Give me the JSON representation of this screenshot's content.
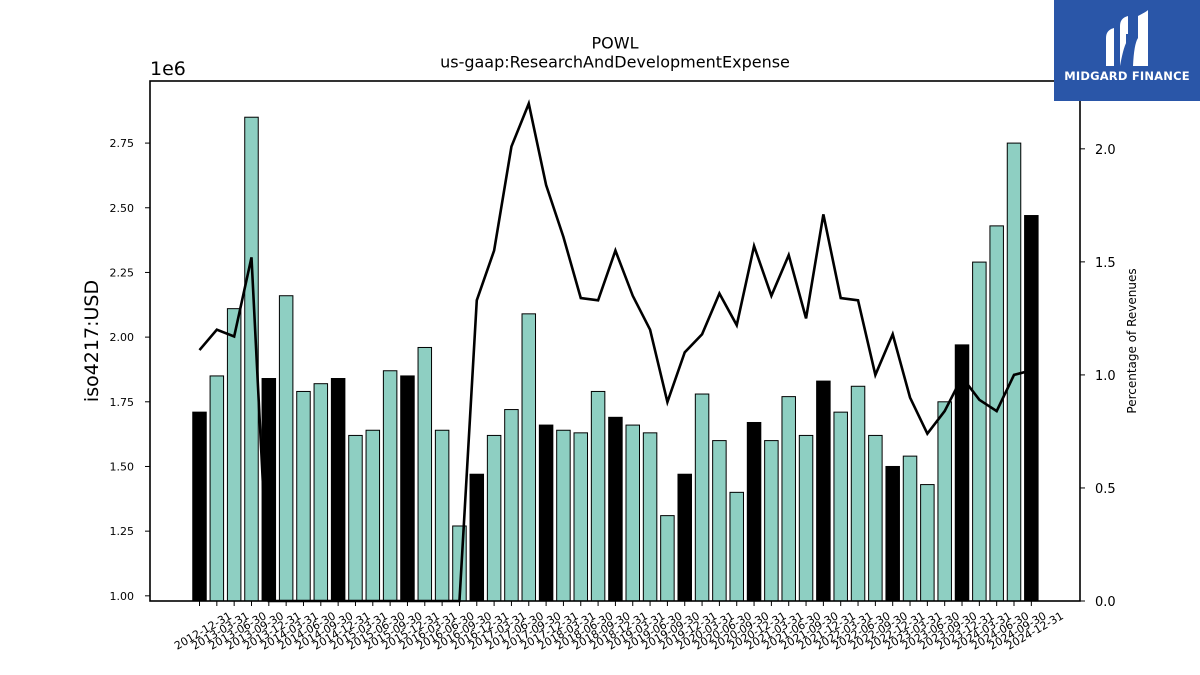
{
  "brand": {
    "name": "MIDGARD FINANCE",
    "background": "#2a56a8"
  },
  "chart_data": {
    "type": "bar",
    "title": "POWL",
    "subtitle": "us-gaap:ResearchAndDevelopmentExpense",
    "ylabel": "iso4217:USD",
    "y2label": "Percentage of Revenues",
    "y_offset_label": "1e6",
    "ylim": [
      0.98,
      2.99
    ],
    "y2lim": [
      0.0,
      2.3
    ],
    "yticks": [
      "1.00",
      "1.25",
      "1.50",
      "1.75",
      "2.00",
      "2.25",
      "2.50",
      "2.75"
    ],
    "y2ticks": [
      "0.0",
      "0.5",
      "1.0",
      "1.5",
      "2.0"
    ],
    "colors": {
      "quarter": "#8ecfc2",
      "fiscal_year": "#000000",
      "line": "#000000",
      "bar_edge": "#000000"
    },
    "categories": [
      "2012-12-31",
      "2013-03-31",
      "2013-06-30",
      "2013-09-30",
      "2013-12-31",
      "2014-03-31",
      "2014-06-30",
      "2014-09-30",
      "2014-12-31",
      "2015-03-31",
      "2015-06-30",
      "2015-09-30",
      "2015-12-31",
      "2016-03-31",
      "2016-06-30",
      "2016-09-30",
      "2016-12-31",
      "2017-03-31",
      "2017-06-30",
      "2017-09-30",
      "2017-12-31",
      "2018-03-31",
      "2018-06-30",
      "2018-09-30",
      "2018-12-31",
      "2019-03-31",
      "2019-06-30",
      "2019-09-30",
      "2019-12-31",
      "2020-03-31",
      "2020-06-30",
      "2020-09-30",
      "2020-12-31",
      "2021-03-31",
      "2021-06-30",
      "2021-09-30",
      "2021-12-31",
      "2022-03-31",
      "2022-06-30",
      "2022-09-30",
      "2022-12-31",
      "2023-03-31",
      "2023-06-30",
      "2023-09-30",
      "2023-12-31",
      "2024-03-31",
      "2024-06-30",
      "2024-09-30",
      "2024-12-31"
    ],
    "xtick_labels": [
      "2012-12-31",
      "2013-03-31",
      "2013-06-30",
      "2013-09-30",
      "2013-12-31",
      "2014-03-31",
      "2014-06-30",
      "2014-09-30",
      "2014-12-31",
      "2015-03-31",
      "2015-06-30",
      "2015-09-30",
      "2015-12-31",
      "2016-03-31",
      "2016-06-30",
      "2016-09-30",
      "2016-12-31",
      "2017-03-31",
      "2017-06-30",
      "2017-09-30",
      "2017-12-31",
      "2018-03-31",
      "2018-06-30",
      "2018-09-30",
      "2018-12-31",
      "2019-03-31",
      "2019-06-30",
      "2019-09-30",
      "2019-12-31",
      "2020-03-31",
      "2020-06-30",
      "2020-09-30",
      "2020-12-31",
      "2021-03-31",
      "2021-06-30",
      "2021-09-30",
      "2021-12-31",
      "2022-03-31",
      "2022-06-30",
      "2022-09-30",
      "2022-12-31",
      "2023-03-31",
      "2023-06-30",
      "2023-09-30",
      "2023-12-31",
      "2024-03-31",
      "2024-06-30",
      "2024-09-30",
      "2024-12-31"
    ],
    "series": [
      {
        "type": "bar",
        "axis": "left",
        "values": [
          1.71,
          1.85,
          2.11,
          2.85,
          1.84,
          2.16,
          1.79,
          1.82,
          1.84,
          1.62,
          1.64,
          1.87,
          1.85,
          1.96,
          1.64,
          1.27,
          1.47,
          1.62,
          1.72,
          2.09,
          1.66,
          1.64,
          1.63,
          1.79,
          1.69,
          1.66,
          1.63,
          1.31,
          1.47,
          1.78,
          1.6,
          1.4,
          1.67,
          1.6,
          1.77,
          1.62,
          1.83,
          1.71,
          1.81,
          1.62,
          1.5,
          1.54,
          1.43,
          1.75,
          1.97,
          2.29,
          2.43,
          2.75,
          2.47
        ],
        "fiscal_year_end": [
          true,
          false,
          false,
          false,
          true,
          false,
          false,
          false,
          true,
          false,
          false,
          false,
          true,
          false,
          false,
          false,
          true,
          false,
          false,
          false,
          true,
          false,
          false,
          false,
          true,
          false,
          false,
          false,
          true,
          false,
          false,
          false,
          true,
          false,
          false,
          false,
          true,
          false,
          false,
          false,
          true,
          false,
          false,
          false,
          true,
          false,
          false,
          false,
          true
        ]
      },
      {
        "type": "line",
        "axis": "right",
        "values": [
          1.11,
          1.2,
          1.17,
          1.52,
          0.0,
          0.0,
          0.0,
          0.0,
          0.0,
          0.0,
          0.0,
          0.0,
          0.0,
          0.0,
          0.0,
          0.0,
          1.33,
          1.55,
          2.01,
          2.2,
          1.84,
          1.61,
          1.34,
          1.33,
          1.55,
          1.35,
          1.2,
          0.88,
          1.1,
          1.18,
          1.36,
          1.22,
          1.57,
          1.35,
          1.53,
          1.25,
          1.71,
          1.34,
          1.33,
          1.0,
          1.18,
          0.9,
          0.74,
          0.84,
          0.99,
          0.89,
          0.84,
          1.0,
          1.02
        ]
      }
    ]
  }
}
